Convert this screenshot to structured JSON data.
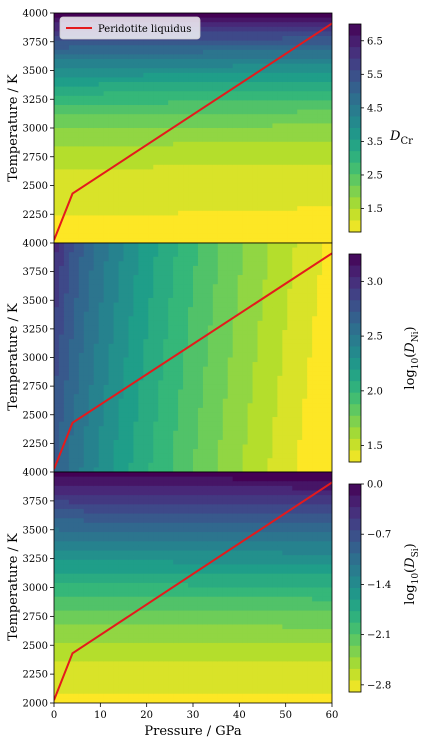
{
  "chart_data": [
    {
      "type": "heatmap",
      "ylabel": "Temperature / K",
      "xlim": [
        0,
        60
      ],
      "ylim": [
        2000,
        4000
      ],
      "yticks": [
        "2250",
        "2500",
        "2750",
        "3000",
        "3250",
        "3500",
        "3750",
        "4000"
      ],
      "ytick_first": "4000",
      "colorbar": {
        "label": "D_Cr",
        "label_main": "D",
        "label_sub": "Cr",
        "range": [
          0.8,
          7.0
        ],
        "ticks": [
          "1.5",
          "2.5",
          "3.5",
          "4.5",
          "5.5",
          "6.5"
        ]
      },
      "field_trend": "increases with temperature, weak dependence on pressure",
      "legend": {
        "label": "Peridotite liquidus",
        "color": "#e41a1c",
        "position": "upper-left"
      },
      "series": [
        {
          "name": "Peridotite liquidus",
          "x": [
            0,
            4,
            60
          ],
          "y": [
            2025,
            2430,
            3910
          ]
        }
      ]
    },
    {
      "type": "heatmap",
      "ylabel": "Temperature / K",
      "xlim": [
        0,
        60
      ],
      "ylim": [
        2000,
        4000
      ],
      "yticks": [
        "2250",
        "2500",
        "2750",
        "3000",
        "3250",
        "3500",
        "3750"
      ],
      "ytick_first": "4000",
      "colorbar": {
        "label": "log10(D_Ni)",
        "label_main": "log",
        "label_base": "10",
        "label_var": "D",
        "label_sub": "Ni",
        "range": [
          1.35,
          3.25
        ],
        "ticks": [
          "1.5",
          "2.0",
          "2.5",
          "3.0"
        ]
      },
      "field_trend": "decreases with pressure, increases slightly with temperature",
      "series": [
        {
          "name": "Peridotite liquidus",
          "x": [
            0,
            4,
            60
          ],
          "y": [
            2025,
            2430,
            3910
          ]
        }
      ]
    },
    {
      "type": "heatmap",
      "xlabel": "Pressure / GPa",
      "ylabel": "Temperature / K",
      "xlim": [
        0,
        60
      ],
      "ylim": [
        2000,
        4000
      ],
      "xticks": [
        "0",
        "10",
        "20",
        "30",
        "40",
        "50",
        "60"
      ],
      "yticks": [
        "2000",
        "2250",
        "2500",
        "2750",
        "3000",
        "3250",
        "3500",
        "3750"
      ],
      "colorbar": {
        "label": "log10(D_Si)",
        "label_main": "log",
        "label_base": "10",
        "label_var": "D",
        "label_sub": "Si",
        "range": [
          -2.9,
          0.0
        ],
        "ticks": [
          "0.0",
          "−0.7",
          "−1.4",
          "−2.1",
          "−2.8"
        ]
      },
      "field_trend": "increases with temperature, weak dependence on pressure",
      "series": [
        {
          "name": "Peridotite liquidus",
          "x": [
            0,
            4,
            60
          ],
          "y": [
            2025,
            2430,
            3910
          ]
        }
      ]
    }
  ],
  "colors": {
    "liquidus": "#e41a1c",
    "colormap": "viridis_r"
  }
}
